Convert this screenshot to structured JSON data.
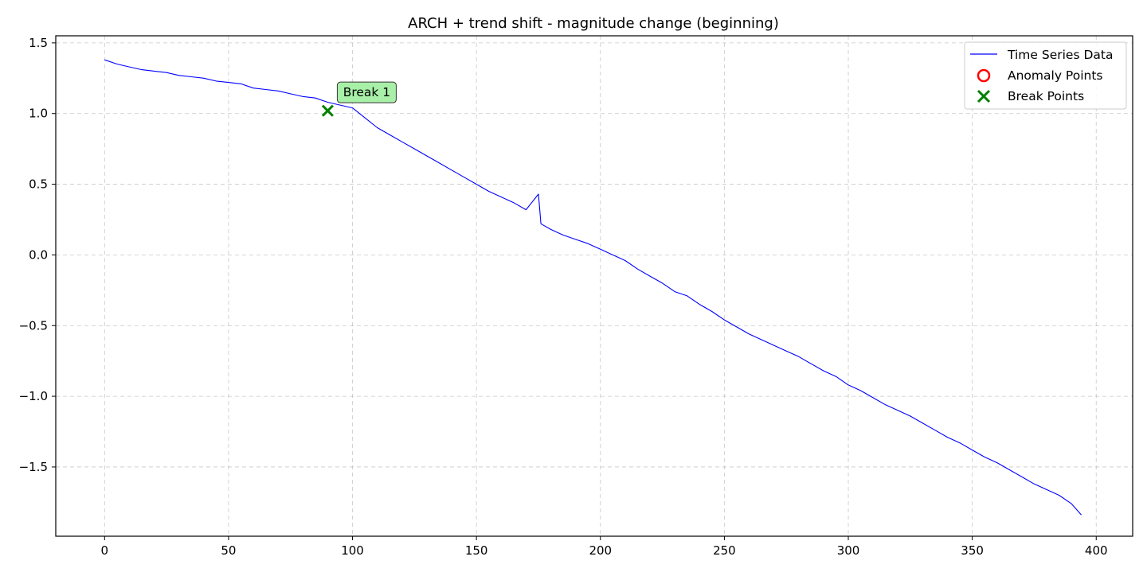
{
  "chart_data": {
    "type": "line",
    "title": "ARCH + trend shift - magnitude change (beginning)",
    "xlabel": "",
    "ylabel": "",
    "xlim": [
      -19.7,
      414.7
    ],
    "ylim": [
      -1.99,
      1.55
    ],
    "xticks": [
      0,
      50,
      100,
      150,
      200,
      250,
      300,
      350,
      400
    ],
    "xtick_labels": [
      "0",
      "50",
      "100",
      "150",
      "200",
      "250",
      "300",
      "350",
      "400"
    ],
    "yticks": [
      1.5,
      1.0,
      0.5,
      0.0,
      -0.5,
      -1.0,
      -1.5
    ],
    "ytick_labels": [
      "1.5",
      "1.0",
      "0.5",
      "0.0",
      "−0.5",
      "−1.0",
      "−1.5"
    ],
    "grid": true,
    "legend_position": "upper right",
    "legend": [
      {
        "label": "Time Series Data",
        "marker": "line",
        "color": "#0000ff"
      },
      {
        "label": "Anomaly Points",
        "marker": "circle",
        "color": "#ff0000"
      },
      {
        "label": "Break Points",
        "marker": "x",
        "color": "#008000"
      }
    ],
    "series": [
      {
        "name": "Time Series Data",
        "color": "#0000ff",
        "x": [
          0,
          5,
          10,
          15,
          20,
          25,
          30,
          35,
          40,
          45,
          50,
          55,
          60,
          65,
          70,
          75,
          80,
          85,
          90,
          95,
          100,
          105,
          110,
          115,
          120,
          125,
          130,
          135,
          140,
          145,
          150,
          155,
          160,
          165,
          170,
          175,
          176,
          180,
          185,
          190,
          195,
          200,
          205,
          210,
          215,
          220,
          225,
          230,
          235,
          240,
          245,
          250,
          255,
          260,
          265,
          270,
          275,
          280,
          285,
          290,
          295,
          300,
          305,
          310,
          315,
          320,
          325,
          330,
          335,
          340,
          345,
          350,
          355,
          360,
          365,
          370,
          375,
          380,
          385,
          390,
          394
        ],
        "y": [
          1.38,
          1.35,
          1.33,
          1.31,
          1.3,
          1.29,
          1.27,
          1.26,
          1.25,
          1.23,
          1.22,
          1.21,
          1.18,
          1.17,
          1.16,
          1.14,
          1.12,
          1.11,
          1.08,
          1.06,
          1.04,
          0.97,
          0.9,
          0.85,
          0.8,
          0.75,
          0.7,
          0.65,
          0.6,
          0.55,
          0.5,
          0.45,
          0.41,
          0.37,
          0.32,
          0.43,
          0.22,
          0.18,
          0.14,
          0.11,
          0.08,
          0.04,
          0.0,
          -0.04,
          -0.1,
          -0.15,
          -0.2,
          -0.26,
          -0.29,
          -0.35,
          -0.4,
          -0.46,
          -0.51,
          -0.56,
          -0.6,
          -0.64,
          -0.68,
          -0.72,
          -0.77,
          -0.82,
          -0.86,
          -0.92,
          -0.96,
          -1.01,
          -1.06,
          -1.1,
          -1.14,
          -1.19,
          -1.24,
          -1.29,
          -1.33,
          -1.38,
          -1.43,
          -1.47,
          -1.52,
          -1.57,
          -1.62,
          -1.66,
          -1.7,
          -1.76,
          -1.84
        ]
      }
    ],
    "anomaly_points": [],
    "break_points": [
      {
        "x": 90,
        "y": 1.02
      }
    ],
    "annotations": [
      {
        "text": "Break 1",
        "x": 90,
        "y": 1.02,
        "box_color": "#a8f0a8"
      }
    ]
  }
}
